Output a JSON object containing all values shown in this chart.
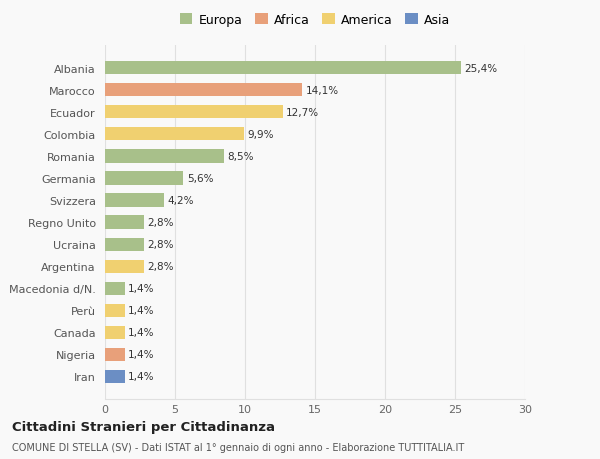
{
  "countries": [
    "Albania",
    "Marocco",
    "Ecuador",
    "Colombia",
    "Romania",
    "Germania",
    "Svizzera",
    "Regno Unito",
    "Ucraina",
    "Argentina",
    "Macedonia d/N.",
    "Perù",
    "Canada",
    "Nigeria",
    "Iran"
  ],
  "values": [
    25.4,
    14.1,
    12.7,
    9.9,
    8.5,
    5.6,
    4.2,
    2.8,
    2.8,
    2.8,
    1.4,
    1.4,
    1.4,
    1.4,
    1.4
  ],
  "labels": [
    "25,4%",
    "14,1%",
    "12,7%",
    "9,9%",
    "8,5%",
    "5,6%",
    "4,2%",
    "2,8%",
    "2,8%",
    "2,8%",
    "1,4%",
    "1,4%",
    "1,4%",
    "1,4%",
    "1,4%"
  ],
  "continents": [
    "Europa",
    "Africa",
    "America",
    "America",
    "Europa",
    "Europa",
    "Europa",
    "Europa",
    "Europa",
    "America",
    "Europa",
    "America",
    "America",
    "Africa",
    "Asia"
  ],
  "colors": {
    "Europa": "#a8c08a",
    "Africa": "#e8a07a",
    "America": "#f0d070",
    "Asia": "#6b8ec4"
  },
  "xlim": [
    0,
    30
  ],
  "xticks": [
    0,
    5,
    10,
    15,
    20,
    25,
    30
  ],
  "title": "Cittadini Stranieri per Cittadinanza",
  "subtitle": "COMUNE DI STELLA (SV) - Dati ISTAT al 1° gennaio di ogni anno - Elaborazione TUTTITALIA.IT",
  "background_color": "#f9f9f9",
  "grid_color": "#e0e0e0",
  "legend_order": [
    "Europa",
    "Africa",
    "America",
    "Asia"
  ]
}
